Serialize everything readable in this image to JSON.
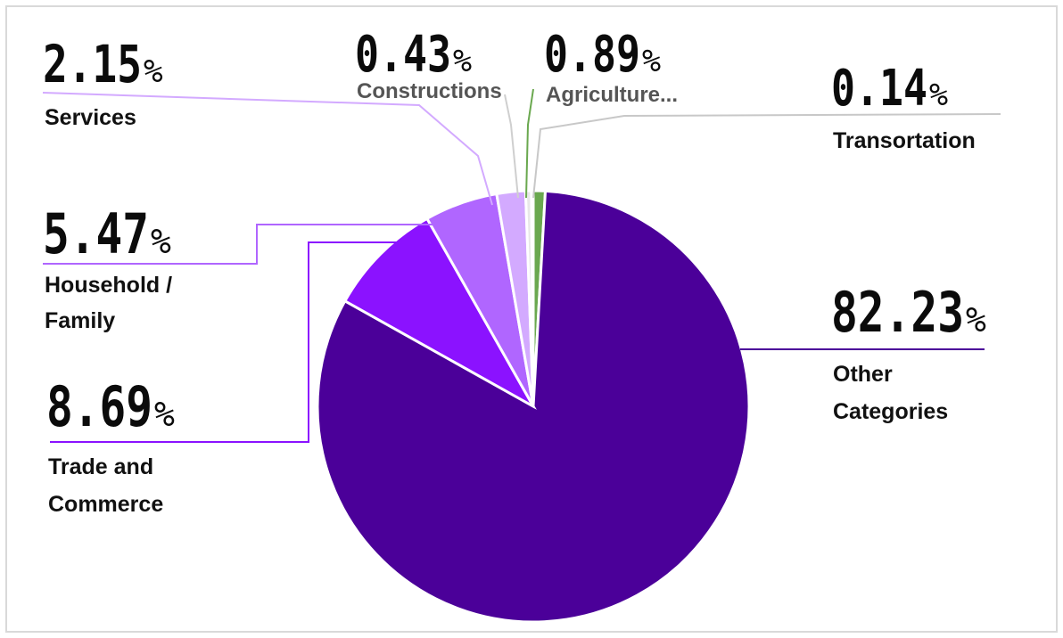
{
  "chart_data": {
    "type": "pie",
    "title": "",
    "slices": [
      {
        "label": "Other Categories",
        "label_lines": [
          "Other",
          "Categories"
        ],
        "value": 82.23,
        "display": "82.23",
        "color": "#4b0099"
      },
      {
        "label": "Trade and Commerce",
        "label_lines": [
          "Trade and",
          "Commerce"
        ],
        "value": 8.69,
        "display": "8.69",
        "color": "#8b12ff"
      },
      {
        "label": "Household / Family",
        "label_lines": [
          "Household /",
          "Family"
        ],
        "value": 5.47,
        "display": "5.47",
        "color": "#b066ff"
      },
      {
        "label": "Services",
        "label_lines": [
          "Services"
        ],
        "value": 2.15,
        "display": "2.15",
        "color": "#d3aaff"
      },
      {
        "label": "Constructions",
        "label_lines": [
          "Constructions"
        ],
        "value": 0.43,
        "display": "0.43",
        "color": "#e8e8e8"
      },
      {
        "label": "Agriculture...",
        "label_lines": [
          "Agriculture..."
        ],
        "value": 0.89,
        "display": "0.89",
        "color": "#6aa84f"
      },
      {
        "label": "Transortation",
        "label_lines": [
          "Transortation"
        ],
        "value": 0.14,
        "display": "0.14",
        "color": "#c8c8c8"
      }
    ],
    "percent_suffix": "%",
    "legend": "none",
    "leader_lines": true
  }
}
